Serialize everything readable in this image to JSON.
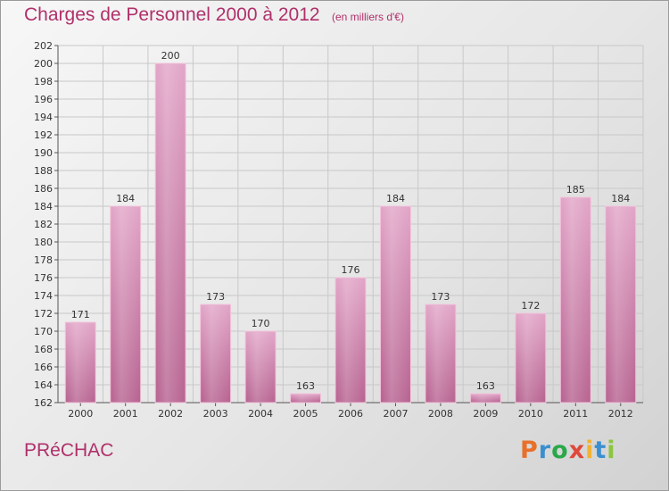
{
  "header": {
    "title": "Charges de Personnel 2000 à 2012",
    "subtitle": "(en milliers d'€)"
  },
  "footer": {
    "commune": "PRéCHAC",
    "logo_text": "Proxiti",
    "logo_colors": [
      "#e8702a",
      "#3a8fd0",
      "#2aa84a",
      "#e0483a",
      "#f2b233",
      "#3a8fd0",
      "#8cc63f"
    ]
  },
  "colors": {
    "bar_fill": "#d98fb8",
    "bar_edge": "#f2c6dc",
    "title": "#b0306a",
    "grid": "#c8c8c8"
  },
  "chart_data": {
    "type": "bar",
    "title": "Charges de Personnel 2000 à 2012",
    "subtitle": "(en milliers d'€)",
    "categories": [
      "2000",
      "2001",
      "2002",
      "2003",
      "2004",
      "2005",
      "2006",
      "2007",
      "2008",
      "2009",
      "2010",
      "2011",
      "2012"
    ],
    "values": [
      171,
      184,
      200,
      173,
      170,
      163,
      176,
      184,
      173,
      163,
      172,
      185,
      184
    ],
    "ylim": [
      162,
      202
    ],
    "yticks": [
      162,
      164,
      166,
      168,
      170,
      172,
      174,
      176,
      178,
      180,
      182,
      184,
      186,
      188,
      190,
      192,
      194,
      196,
      198,
      200,
      202
    ],
    "grid": true,
    "data_labels": true
  }
}
